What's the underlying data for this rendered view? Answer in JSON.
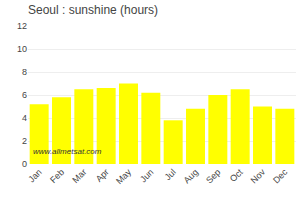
{
  "chart_data": {
    "type": "bar",
    "title": "Seoul : sunshine (hours)",
    "categories": [
      "Jan",
      "Feb",
      "Mar",
      "Apr",
      "May",
      "Jun",
      "Jul",
      "Aug",
      "Sep",
      "Oct",
      "Nov",
      "Dec"
    ],
    "values": [
      5.2,
      5.8,
      6.5,
      6.6,
      7.0,
      6.2,
      3.8,
      4.8,
      6.0,
      6.5,
      5.0,
      4.8
    ],
    "color": "#FFFF00",
    "ylim": [
      0,
      12
    ],
    "yticks": [
      0,
      2,
      4,
      6,
      8,
      10,
      12
    ],
    "grid": true,
    "annotations": [
      "www.allmetsat.com"
    ]
  }
}
